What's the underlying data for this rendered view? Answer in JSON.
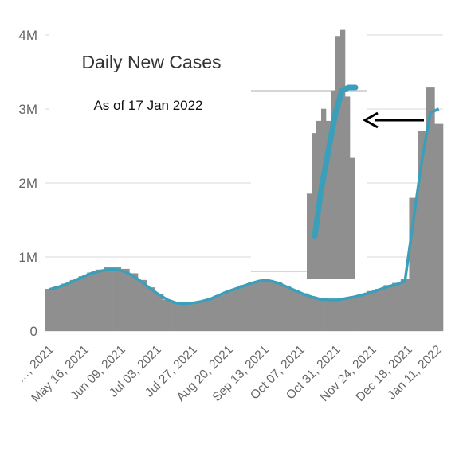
{
  "chart_data": {
    "type": "bar",
    "title": "Daily New Cases",
    "subtitle": "As of 17 Jan 2022",
    "xlabel": "",
    "ylabel": "",
    "ylim": [
      0,
      4000000
    ],
    "yticks": [
      {
        "value": 0,
        "label": "0"
      },
      {
        "value": 1000000,
        "label": "1M"
      },
      {
        "value": 2000000,
        "label": "2M"
      },
      {
        "value": 3000000,
        "label": "3M"
      },
      {
        "value": 4000000,
        "label": "4M"
      }
    ],
    "x_tick_labels": [
      "…, 2021",
      "May 16, 2021",
      "Jun 09, 2021",
      "Jul 03, 2021",
      "Jul 27, 2021",
      "Aug 20, 2021",
      "Sep 13, 2021",
      "Oct 07, 2021",
      "Oct 31, 2021",
      "Nov 24, 2021",
      "Dec 18, 2021",
      "Jan 11, 2022"
    ],
    "grid": true,
    "series": [
      {
        "kind": "bar",
        "color": "#8f8f8f",
        "values": [
          570000,
          600000,
          640000,
          690000,
          740000,
          790000,
          830000,
          860000,
          870000,
          840000,
          780000,
          690000,
          590000,
          500000,
          420000,
          380000,
          370000,
          380000,
          400000,
          430000,
          480000,
          530000,
          570000,
          620000,
          660000,
          690000,
          690000,
          660000,
          610000,
          560000,
          510000,
          470000,
          440000,
          430000,
          430000,
          440000,
          470000,
          500000,
          540000,
          570000,
          620000,
          650000,
          700000,
          1800000,
          2700000,
          3300000,
          2800000
        ]
      },
      {
        "kind": "line",
        "color": "#3a9fba",
        "values": [
          560000,
          590000,
          630000,
          680000,
          730000,
          780000,
          810000,
          830000,
          830000,
          800000,
          740000,
          660000,
          570000,
          490000,
          420000,
          380000,
          370000,
          380000,
          400000,
          430000,
          480000,
          530000,
          570000,
          610000,
          650000,
          680000,
          680000,
          650000,
          600000,
          550000,
          500000,
          460000,
          430000,
          420000,
          420000,
          440000,
          460000,
          490000,
          520000,
          560000,
          600000,
          630000,
          670000,
          1500000,
          2300000,
          2950000,
          3000000
        ]
      }
    ],
    "inset": {
      "description_label": "",
      "bar_values": [
        1400000,
        2400000,
        2600000,
        2800000,
        2600000,
        3100000,
        4000000,
        4100000,
        3000000,
        2000000
      ],
      "line_values": [
        700000,
        1500000,
        2100000,
        2700000,
        3100000,
        3150000,
        3150000
      ]
    },
    "annotation_arrow": true
  },
  "colors": {
    "bars": "#8f8f8f",
    "line": "#3a9fba",
    "axis_text": "#666666",
    "grid": "#e6e6e6",
    "arrow": "#000000"
  }
}
